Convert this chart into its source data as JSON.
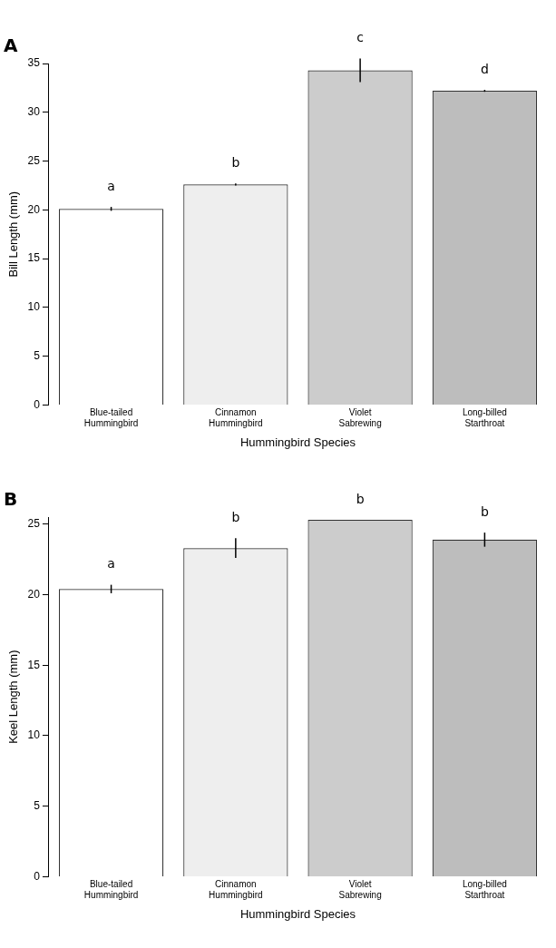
{
  "chart_data": [
    {
      "type": "bar",
      "title": "A",
      "xlabel": "Hummingbird Species",
      "ylabel": "Bill Length (mm)",
      "categories": [
        "Blue-tailed Hummingbird",
        "Cinnamon Hummingbird",
        "Violet Sabrewing",
        "Long-billed Starthroat"
      ],
      "values": [
        20.1,
        22.6,
        34.3,
        32.2
      ],
      "errors": [
        0.2,
        0.1,
        1.2,
        0.1
      ],
      "colors": [
        "#ffffff",
        "#eeeeee",
        "#cccccc",
        "#bdbdbd"
      ],
      "ylim": [
        0,
        35
      ],
      "yticks": [
        0,
        5,
        10,
        15,
        20,
        25,
        30,
        35
      ],
      "grid": false,
      "legend": false,
      "annotations": [
        "a",
        "b",
        "c",
        "d"
      ]
    },
    {
      "type": "bar",
      "title": "B",
      "xlabel": "Hummingbird Species",
      "ylabel": "Keel Length (mm)",
      "categories": [
        "Blue-tailed Hummingbird",
        "Cinnamon Hummingbird",
        "Violet Sabrewing",
        "Long-billed Starthroat"
      ],
      "values": [
        20.4,
        23.3,
        25.3,
        23.9
      ],
      "errors": [
        0.3,
        0.7,
        null,
        0.5
      ],
      "colors": [
        "#ffffff",
        "#eeeeee",
        "#cccccc",
        "#bdbdbd"
      ],
      "ylim": [
        0,
        25.5
      ],
      "yticks": [
        0,
        5,
        10,
        15,
        20,
        25
      ],
      "grid": false,
      "legend": false,
      "annotations": [
        "a",
        "b",
        "b",
        "b"
      ]
    }
  ]
}
